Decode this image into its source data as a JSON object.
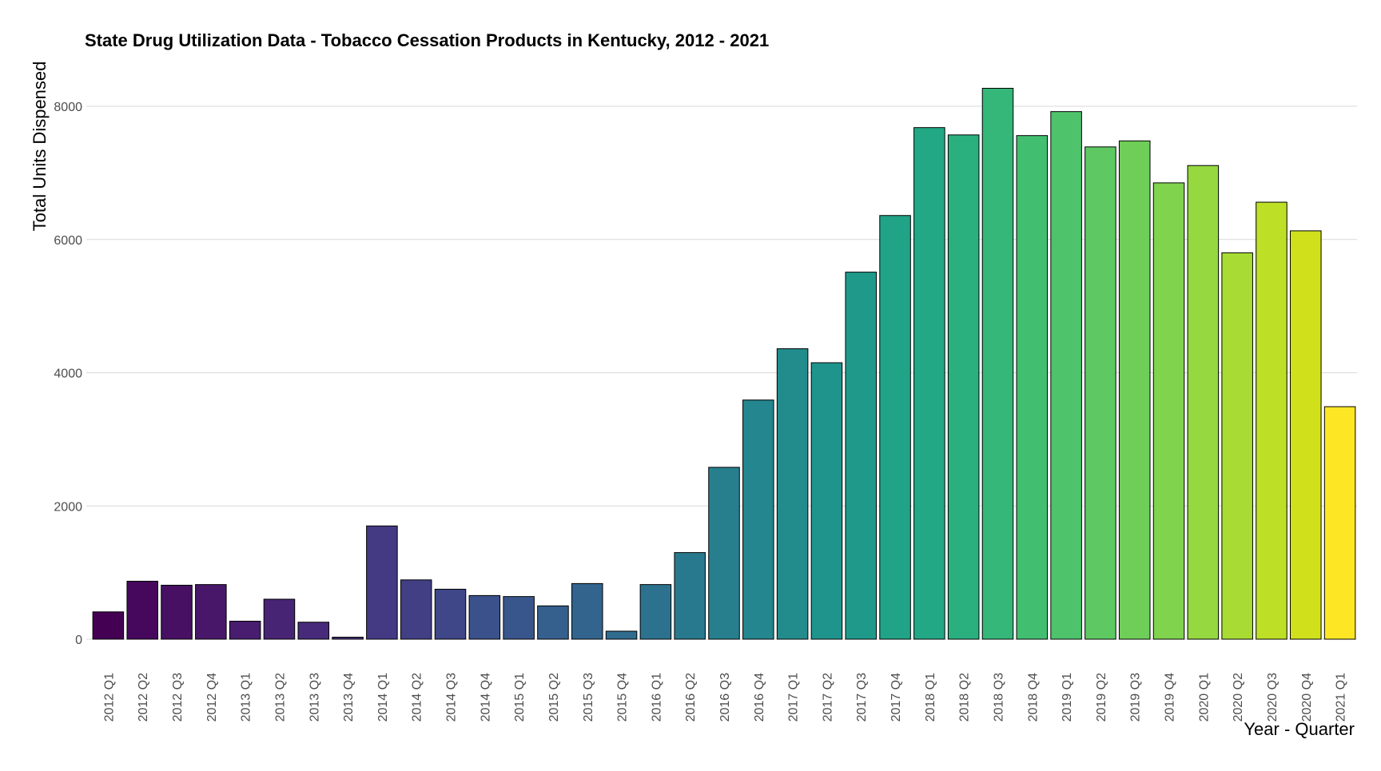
{
  "chart_data": {
    "type": "bar",
    "title": "State Drug Utilization Data - Tobacco Cessation Products in Kentucky, 2012 - 2021",
    "xlabel": "Year - Quarter",
    "ylabel": "Total Units Dispensed",
    "ylim": [
      0,
      8500
    ],
    "yticks": [
      0,
      2000,
      4000,
      6000,
      8000
    ],
    "grid": "horizontal major",
    "legend": "none",
    "categories": [
      "2012 Q1",
      "2012 Q2",
      "2012 Q3",
      "2012 Q4",
      "2013 Q1",
      "2013 Q2",
      "2013 Q3",
      "2013 Q4",
      "2014 Q1",
      "2014 Q2",
      "2014 Q3",
      "2014 Q4",
      "2015 Q1",
      "2015 Q2",
      "2015 Q3",
      "2015 Q4",
      "2016 Q1",
      "2016 Q2",
      "2016 Q3",
      "2016 Q4",
      "2017 Q1",
      "2017 Q2",
      "2017 Q3",
      "2017 Q4",
      "2018 Q1",
      "2018 Q2",
      "2018 Q3",
      "2018 Q4",
      "2019 Q1",
      "2019 Q2",
      "2019 Q3",
      "2019 Q4",
      "2020 Q1",
      "2020 Q2",
      "2020 Q3",
      "2020 Q4",
      "2021 Q1"
    ],
    "values": [
      410,
      870,
      810,
      820,
      270,
      600,
      255,
      30,
      1700,
      890,
      750,
      655,
      640,
      500,
      835,
      120,
      820,
      1300,
      2580,
      3590,
      4360,
      4150,
      5510,
      6360,
      7680,
      7570,
      8270,
      7560,
      7920,
      7390,
      7480,
      6850,
      7110,
      5800,
      6560,
      6130,
      3490
    ],
    "colors": [
      "#440154",
      "#46085c",
      "#471063",
      "#481769",
      "#481d6f",
      "#482475",
      "#472a7a",
      "#46307e",
      "#443983",
      "#423f85",
      "#3f4788",
      "#3b518b",
      "#39568c",
      "#355f8d",
      "#32648e",
      "#2f6c8e",
      "#2c728e",
      "#29798e",
      "#277f8e",
      "#24868e",
      "#228c8d",
      "#1f948c",
      "#1f9a8a",
      "#20a386",
      "#22a884",
      "#2ab07f",
      "#35b779",
      "#42be71",
      "#4ec36b",
      "#5ec962",
      "#6ece58",
      "#80d34c",
      "#95d840",
      "#a8db34",
      "#bddf26",
      "#d0e11c",
      "#fde725"
    ]
  }
}
